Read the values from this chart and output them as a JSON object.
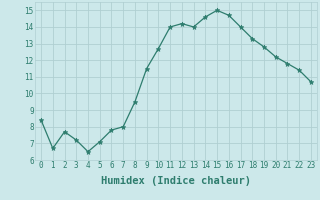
{
  "xlabel": "Humidex (Indice chaleur)",
  "ylabel": "",
  "x": [
    0,
    1,
    2,
    3,
    4,
    5,
    6,
    7,
    8,
    9,
    10,
    11,
    12,
    13,
    14,
    15,
    16,
    17,
    18,
    19,
    20,
    21,
    22,
    23
  ],
  "y": [
    8.4,
    6.7,
    7.7,
    7.2,
    6.5,
    7.1,
    7.8,
    8.0,
    9.5,
    11.5,
    12.7,
    14.0,
    14.2,
    14.0,
    14.6,
    15.0,
    14.7,
    14.0,
    13.3,
    12.8,
    12.2,
    11.8,
    11.4,
    10.7
  ],
  "line_color": "#2e7d6e",
  "marker": "*",
  "marker_size": 3.5,
  "bg_color": "#cce8ea",
  "grid_color": "#b0cfd2",
  "xlim": [
    -0.5,
    23.5
  ],
  "ylim": [
    6,
    15.5
  ],
  "yticks": [
    6,
    7,
    8,
    9,
    10,
    11,
    12,
    13,
    14,
    15
  ],
  "xticks": [
    0,
    1,
    2,
    3,
    4,
    5,
    6,
    7,
    8,
    9,
    10,
    11,
    12,
    13,
    14,
    15,
    16,
    17,
    18,
    19,
    20,
    21,
    22,
    23
  ],
  "tick_fontsize": 5.5,
  "xlabel_fontsize": 7.5,
  "tick_color": "#2e7d6e"
}
